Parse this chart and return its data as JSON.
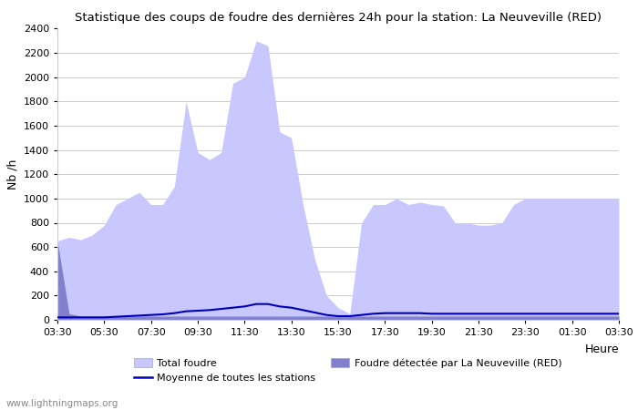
{
  "title": "Statistique des coups de foudre des dernières 24h pour la station: La Neuveville (RED)",
  "ylabel": "Nb /h",
  "xlabel": "Heure",
  "watermark": "www.lightningmaps.org",
  "ylim": [
    0,
    2400
  ],
  "yticks": [
    0,
    200,
    400,
    600,
    800,
    1000,
    1200,
    1400,
    1600,
    1800,
    2000,
    2200,
    2400
  ],
  "x_labels": [
    "03:30",
    "05:30",
    "07:30",
    "09:30",
    "11:30",
    "13:30",
    "15:30",
    "17:30",
    "19:30",
    "21:30",
    "23:30",
    "01:30",
    "03:30"
  ],
  "legend_total": "Total foudre",
  "legend_station": "Foudre détectée par La Neuveville (RED)",
  "legend_moyenne": "Moyenne de toutes les stations",
  "color_total": "#c8c8ff",
  "color_station": "#8080cc",
  "color_moyenne": "#0000bb",
  "bg_color": "#ffffff",
  "grid_color": "#cccccc",
  "total_foudre": [
    650,
    680,
    660,
    700,
    780,
    950,
    1000,
    1050,
    950,
    950,
    1100,
    1800,
    1380,
    1320,
    1380,
    1950,
    2000,
    2300,
    2260,
    1550,
    1500,
    950,
    500,
    200,
    100,
    50,
    800,
    950,
    950,
    1000,
    950,
    970,
    950,
    940,
    800,
    800,
    780,
    780,
    800,
    950,
    1000,
    1000,
    1000,
    1000,
    1000,
    1000,
    1000,
    1000,
    1000
  ],
  "station_foudre": [
    650,
    50,
    30,
    30,
    30,
    30,
    30,
    30,
    30,
    30,
    30,
    30,
    30,
    30,
    30,
    30,
    30,
    30,
    30,
    30,
    30,
    30,
    30,
    30,
    30,
    30,
    30,
    30,
    30,
    30,
    30,
    30,
    30,
    30,
    30,
    30,
    30,
    30,
    30,
    30,
    30,
    30,
    30,
    30,
    30,
    30,
    30,
    30,
    30
  ],
  "moyenne": [
    20,
    20,
    20,
    20,
    20,
    25,
    30,
    35,
    40,
    45,
    55,
    70,
    75,
    80,
    90,
    100,
    110,
    130,
    130,
    110,
    100,
    80,
    60,
    40,
    30,
    30,
    40,
    50,
    55,
    55,
    55,
    55,
    50,
    50,
    50,
    50,
    50,
    50,
    50,
    50,
    50,
    50,
    50,
    50,
    50,
    50,
    50,
    50,
    50
  ]
}
